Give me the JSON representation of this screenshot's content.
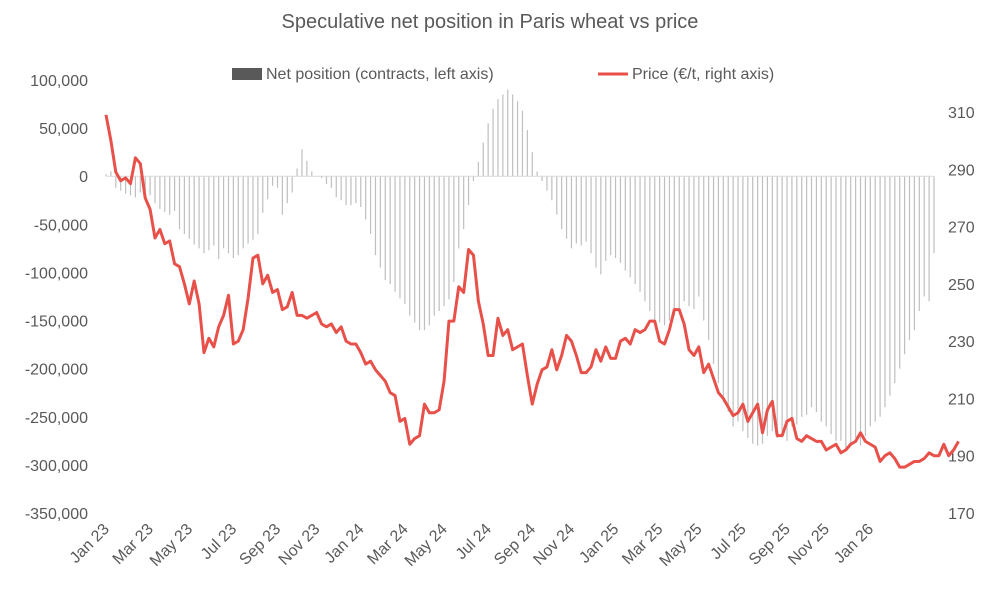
{
  "chart_data": {
    "type": "bar+line",
    "title": "Speculative net position in Paris wheat vs price",
    "left_axis": {
      "min": -350000,
      "max": 100000,
      "step": 50000,
      "ticks": [
        "-350,000",
        "-300,000",
        "-250,000",
        "-200,000",
        "-150,000",
        "-100,000",
        "-50,000",
        "0",
        "50,000",
        "100,000"
      ]
    },
    "right_axis": {
      "min": 170,
      "max": 320,
      "step": 20,
      "ticks": [
        "170",
        "190",
        "210",
        "230",
        "250",
        "270",
        "290",
        "310"
      ]
    },
    "x_labels": [
      "Jan 23",
      "Mar 23",
      "May 23",
      "Jul 23",
      "Sep 23",
      "Nov 23",
      "Jan 24",
      "Mar 24",
      "May 24",
      "Jul 24",
      "Sep 24",
      "Nov 24",
      "Jan 25",
      "Mar 25",
      "May 25",
      "Jul 25",
      "Sep 25",
      "Nov 25",
      "Jan 26"
    ],
    "x_label_week_index": [
      0,
      9,
      17,
      26,
      35,
      43,
      52,
      61,
      69,
      78,
      87,
      95,
      104,
      113,
      121,
      130,
      139,
      147,
      156
    ],
    "legend": {
      "bar_label": "Net position (contracts, left axis)",
      "line_label": "Price (€/t, right axis)",
      "placement": "top"
    },
    "colors": {
      "bars": "#bfbfbf",
      "line": "#e8504a",
      "legend_bar": "#595959",
      "text": "#595959"
    },
    "series": [
      {
        "name": "Net position (contracts, left axis)",
        "axis": "left",
        "type": "bar",
        "values": [
          2000,
          5000,
          -12000,
          -15000,
          -18000,
          -20000,
          -22000,
          -17000,
          -15000,
          -20000,
          -28000,
          -34000,
          -37000,
          -40000,
          -36000,
          -55000,
          -60000,
          -65000,
          -71000,
          -75000,
          -80000,
          -77000,
          -72000,
          -86000,
          -75000,
          -80000,
          -85000,
          -82000,
          -75000,
          -70000,
          -66000,
          -60000,
          -38000,
          -24000,
          -10000,
          -12000,
          -40000,
          -28000,
          -17000,
          8000,
          28000,
          16000,
          5000,
          0,
          -2000,
          -8000,
          -12000,
          -22000,
          -25000,
          -30000,
          -30000,
          -28000,
          -32000,
          -45000,
          -60000,
          -82000,
          -95000,
          -108000,
          -112000,
          -120000,
          -127000,
          -133000,
          -145000,
          -152000,
          -160000,
          -160000,
          -155000,
          -145000,
          -140000,
          -135000,
          -128000,
          -110000,
          -75000,
          -55000,
          -30000,
          -5000,
          15000,
          35000,
          55000,
          70000,
          80000,
          85000,
          90000,
          85000,
          78000,
          68000,
          48000,
          25000,
          5000,
          -5000,
          -15000,
          -25000,
          -40000,
          -55000,
          -65000,
          -75000,
          -70000,
          -72000,
          -68000,
          -80000,
          -95000,
          -102000,
          -88000,
          -82000,
          -85000,
          -90000,
          -98000,
          -105000,
          -112000,
          -120000,
          -130000,
          -140000,
          -150000,
          -152000,
          -155000,
          -150000,
          -145000,
          -140000,
          -130000,
          -135000,
          -138000,
          -125000,
          -150000,
          -170000,
          -195000,
          -215000,
          -235000,
          -245000,
          -260000,
          -255000,
          -265000,
          -272000,
          -278000,
          -280000,
          -278000,
          -270000,
          -265000,
          -272000,
          -268000,
          -275000,
          -260000,
          -258000,
          -250000,
          -248000,
          -240000,
          -245000,
          -255000,
          -260000,
          -268000,
          -275000,
          -275000,
          -285000,
          -278000,
          -272000,
          -280000,
          -270000,
          -260000,
          -255000,
          -250000,
          -240000,
          -228000,
          -215000,
          -200000,
          -185000,
          -170000,
          -160000,
          -140000,
          -125000,
          -130000,
          -80000
        ]
      },
      {
        "name": "Price (€/t, right axis)",
        "axis": "right",
        "type": "line",
        "values": [
          309,
          300,
          289,
          286,
          287,
          285,
          294,
          292,
          280,
          276,
          266,
          269,
          264,
          265,
          257,
          256,
          250,
          243,
          251,
          243,
          226,
          231,
          228,
          235,
          239,
          246,
          229,
          230,
          234,
          245,
          259,
          260,
          250,
          253,
          247,
          248,
          241,
          242,
          247,
          239,
          239,
          238,
          239,
          240,
          236,
          235,
          236,
          233,
          235,
          230,
          229,
          229,
          226,
          222,
          223,
          220,
          218,
          216,
          212,
          211,
          202,
          203,
          194,
          196,
          197,
          208,
          205,
          205,
          206,
          216,
          237,
          237,
          249,
          247,
          262,
          260,
          244,
          236,
          225,
          225,
          238,
          232,
          234,
          227,
          228,
          229,
          218,
          208,
          215,
          220,
          221,
          227,
          220,
          225,
          232,
          230,
          225,
          219,
          219,
          221,
          227,
          223,
          228,
          224,
          224,
          230,
          231,
          229,
          234,
          233,
          234,
          237,
          237,
          230,
          229,
          234,
          241,
          241,
          236,
          227,
          225,
          228,
          219,
          222,
          217,
          212,
          210,
          207,
          204,
          205,
          208,
          202,
          205,
          208,
          198,
          206,
          209,
          197,
          197,
          202,
          203,
          196,
          195,
          197,
          196,
          195,
          195,
          192,
          193,
          194,
          191,
          192,
          194,
          195,
          198,
          195,
          194,
          193,
          188,
          190,
          191,
          189,
          186,
          186,
          187,
          188,
          188,
          189,
          191,
          190,
          190,
          194,
          190,
          192,
          195
        ],
        "start_offset_weeks": 0
      }
    ]
  }
}
